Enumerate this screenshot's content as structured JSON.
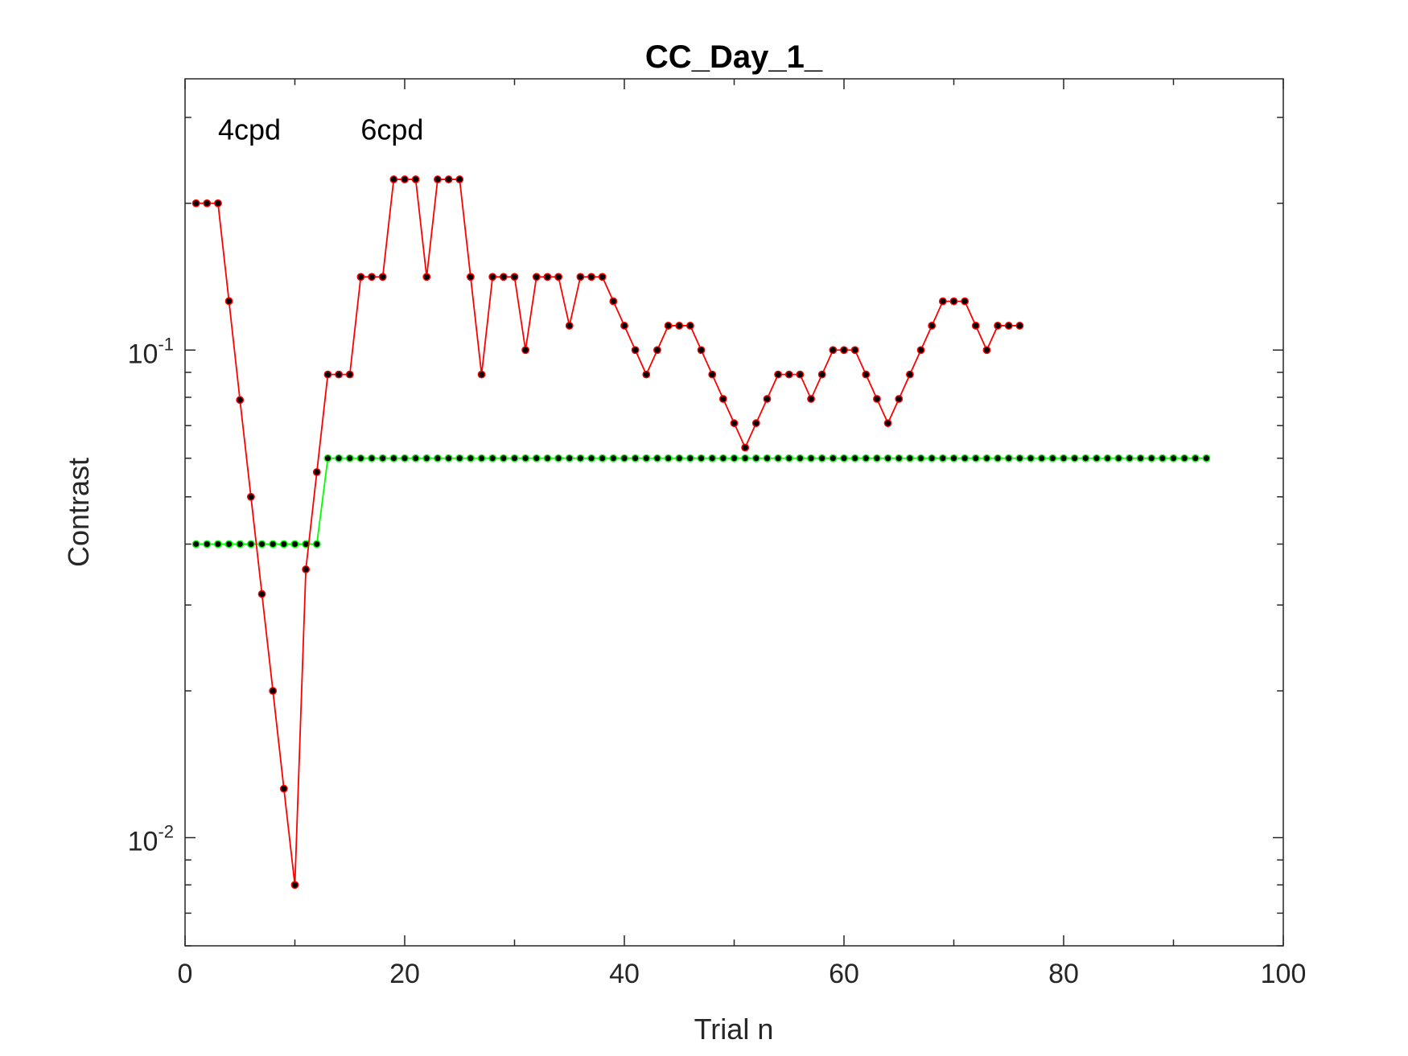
{
  "chart_data": {
    "type": "line",
    "title": "CC_Day_1_",
    "xlabel": "Trial n",
    "ylabel": "Contrast",
    "xlim": [
      0,
      100
    ],
    "ylim": [
      0.006,
      0.36
    ],
    "yscale": "log",
    "grid": false,
    "x_ticks": [
      {
        "value": 0,
        "label": "0"
      },
      {
        "value": 20,
        "label": "20"
      },
      {
        "value": 40,
        "label": "40"
      },
      {
        "value": 60,
        "label": "60"
      },
      {
        "value": 80,
        "label": "80"
      },
      {
        "value": 100,
        "label": "100"
      }
    ],
    "y_ticks": [
      {
        "value": 0.01,
        "base": "10",
        "exp": "-2"
      },
      {
        "value": 0.1,
        "base": "10",
        "exp": "-1"
      }
    ],
    "annotations": [
      {
        "text": "4cpd",
        "x": 3,
        "y": 0.27
      },
      {
        "text": "6cpd",
        "x": 16,
        "y": 0.27
      }
    ],
    "series": [
      {
        "color": "#ff0000",
        "marker_color": "#000000",
        "x": [
          1,
          2,
          3,
          4,
          5,
          6,
          7,
          8,
          9,
          10,
          11,
          12,
          13,
          14,
          15,
          16,
          17,
          18,
          19,
          20,
          21,
          22,
          23,
          24,
          25,
          26,
          27,
          28,
          29,
          30,
          31,
          32,
          33,
          34,
          35,
          36,
          37,
          38,
          39,
          40,
          41,
          42,
          43,
          44,
          45,
          46,
          47,
          48,
          49,
          50,
          51,
          52,
          53,
          54,
          55,
          56,
          57,
          58,
          59,
          60,
          61,
          62,
          63,
          64,
          65,
          66,
          67,
          68,
          69,
          70,
          71,
          72,
          73,
          74,
          75,
          76
        ],
        "values": [
          0.2,
          0.2,
          0.2,
          0.126,
          0.079,
          0.05,
          0.0316,
          0.02,
          0.0126,
          0.008,
          0.0355,
          0.0562,
          0.0891,
          0.0891,
          0.0891,
          0.1413,
          0.1413,
          0.1413,
          0.2239,
          0.2239,
          0.2239,
          0.1413,
          0.2239,
          0.2239,
          0.2239,
          0.1413,
          0.0891,
          0.1413,
          0.1413,
          0.1413,
          0.1,
          0.1413,
          0.1413,
          0.1413,
          0.1122,
          0.1413,
          0.1413,
          0.1413,
          0.1259,
          0.1122,
          0.1,
          0.0891,
          0.1,
          0.1122,
          0.1122,
          0.1122,
          0.1,
          0.0891,
          0.0794,
          0.0708,
          0.0631,
          0.0708,
          0.0794,
          0.0891,
          0.0891,
          0.0891,
          0.0794,
          0.0891,
          0.1,
          0.1,
          0.1,
          0.0891,
          0.0794,
          0.0708,
          0.0794,
          0.0891,
          0.1,
          0.1122,
          0.1259,
          0.1259,
          0.1259,
          0.1122,
          0.1,
          0.1122,
          0.1122,
          0.1122
        ]
      },
      {
        "color": "#00ff00",
        "marker_color": "#000000",
        "x": [
          1,
          2,
          3,
          4,
          5,
          6,
          7,
          8,
          9,
          10,
          11,
          12,
          13,
          14,
          15,
          16,
          17,
          18,
          19,
          20,
          21,
          22,
          23,
          24,
          25,
          26,
          27,
          28,
          29,
          30,
          31,
          32,
          33,
          34,
          35,
          36,
          37,
          38,
          39,
          40,
          41,
          42,
          43,
          44,
          45,
          46,
          47,
          48,
          49,
          50,
          51,
          52,
          53,
          54,
          55,
          56,
          57,
          58,
          59,
          60,
          61,
          62,
          63,
          64,
          65,
          66,
          67,
          68,
          69,
          70,
          71,
          72,
          73,
          74,
          75,
          76,
          77,
          78,
          79,
          80,
          81,
          82,
          83,
          84,
          85,
          86,
          87,
          88,
          89,
          90,
          91,
          92,
          93
        ],
        "values": [
          0.04,
          0.04,
          0.04,
          0.04,
          0.04,
          0.04,
          0.04,
          0.04,
          0.04,
          0.04,
          0.04,
          0.04,
          0.06,
          0.06,
          0.06,
          0.06,
          0.06,
          0.06,
          0.06,
          0.06,
          0.06,
          0.06,
          0.06,
          0.06,
          0.06,
          0.06,
          0.06,
          0.06,
          0.06,
          0.06,
          0.06,
          0.06,
          0.06,
          0.06,
          0.06,
          0.06,
          0.06,
          0.06,
          0.06,
          0.06,
          0.06,
          0.06,
          0.06,
          0.06,
          0.06,
          0.06,
          0.06,
          0.06,
          0.06,
          0.06,
          0.06,
          0.06,
          0.06,
          0.06,
          0.06,
          0.06,
          0.06,
          0.06,
          0.06,
          0.06,
          0.06,
          0.06,
          0.06,
          0.06,
          0.06,
          0.06,
          0.06,
          0.06,
          0.06,
          0.06,
          0.06,
          0.06,
          0.06,
          0.06,
          0.06,
          0.06,
          0.06,
          0.06,
          0.06,
          0.06,
          0.06,
          0.06,
          0.06,
          0.06,
          0.06,
          0.06,
          0.06,
          0.06,
          0.06,
          0.06,
          0.06,
          0.06,
          0.06
        ]
      }
    ]
  }
}
